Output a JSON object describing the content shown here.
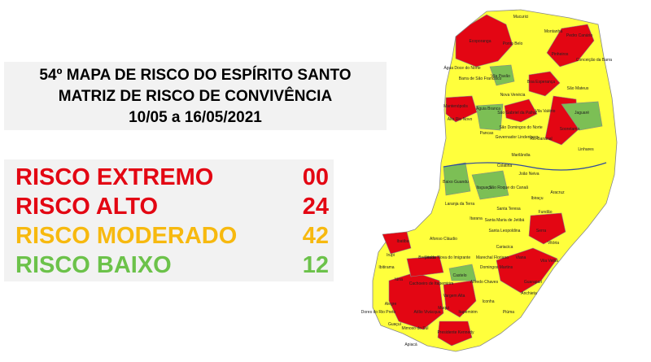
{
  "header": {
    "lines": [
      "54º MAPA DE RISCO DO ESPÍRITO SANTO",
      "MATRIZ DE RISCO DE CONVIVÊNCIA",
      "10/05 a 16/05/2021"
    ]
  },
  "legend": [
    {
      "label": "RISCO EXTREMO",
      "count": "00",
      "color": "#e30613"
    },
    {
      "label": "RISCO ALTO",
      "count": "24",
      "color": "#e30613"
    },
    {
      "label": "RISCO MODERADO",
      "count": "42",
      "color": "#f7b90f"
    },
    {
      "label": "RISCO BAIXO",
      "count": "12",
      "color": "#6cc24a"
    }
  ],
  "map": {
    "labels": [
      "Mucurici",
      "Montanha",
      "Pedro Canário",
      "Ecoporanga",
      "Ponto Belo",
      "Pinheiros",
      "Conceição da Barra",
      "Boa Esperança",
      "Água Doce do Norte",
      "Vila Pavão",
      "Barra de São Francisco",
      "São Mateus",
      "Nova Venécia",
      "Mantenópolis",
      "Águia Branca",
      "São Gabriel da Palha",
      "Vila Valério",
      "Jaguaré",
      "Alto Rio Novo",
      "Pancas",
      "São Domingos do Norte",
      "Sooretama",
      "Governador Lindenberg",
      "Rio Bananal",
      "Linhares",
      "Marilândia",
      "Colatina",
      "Baixo Guandu",
      "João Neiva",
      "Itaguaçu",
      "São Roque do Canaã",
      "Aracruz",
      "Ibiraçu",
      "Laranja da Terra",
      "Santa Teresa",
      "Fundão",
      "Itarana",
      "Serra",
      "Santa Maria de Jetibá",
      "Afonso Cláudio",
      "Santa Leopoldina",
      "Brejetuba",
      "Cariacica",
      "Vitória",
      "Domingos Martins",
      "Vila Velha",
      "Ibatiba",
      "Venda Nova do Imigrante",
      "Marechal Floriano",
      "Iúna",
      "Castelo",
      "Guarapari",
      "Alfredo Chaves",
      "Vargem Alta",
      "Anchieta",
      "Piúma",
      "Itapemirim",
      "Muqui",
      "Mimoso do Sul",
      "Presidente Kennedy",
      "Apiacá",
      "Alegre",
      "Cachoeiro de Itapemirim",
      "Atílio Vivácqua",
      "Guaçuí",
      "Dores do Rio Preto",
      "Ibitirama",
      "Irupi",
      "Viana",
      "Iconha"
    ]
  }
}
